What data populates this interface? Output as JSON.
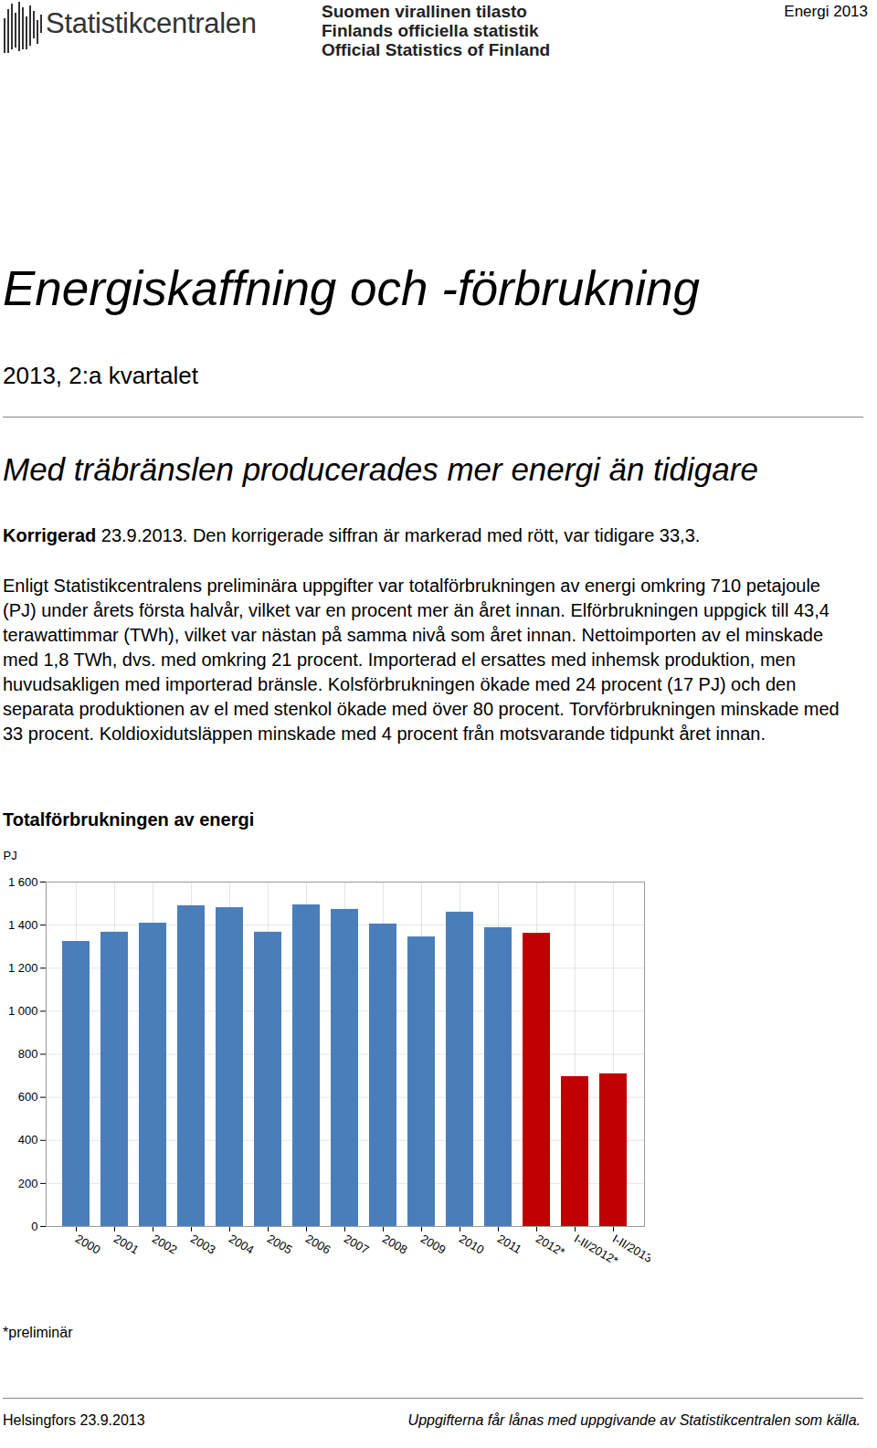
{
  "header": {
    "logo": "Statistikcentralen",
    "series_names": [
      "Suomen virallinen tilasto",
      "Finlands officiella statistik",
      "Official Statistics of Finland"
    ],
    "publication": "Energi 2013"
  },
  "title": "Energiskaffning och -förbrukning",
  "period": "2013, 2:a kvartalet",
  "headline": "Med träbränslen producerades mer energi än tidigare",
  "correction": {
    "label": "Korrigerad",
    "text": "23.9.2013. Den korrigerade siffran är markerad med rött, var tidigare 33,3."
  },
  "body": "Enligt Statistikcentralens preliminära uppgifter var totalförbrukningen av energi omkring 710 petajoule (PJ) under årets första halvår, vilket var en procent mer än året innan. Elförbrukningen uppgick till 43,4 terawattimmar (TWh), vilket var nästan på samma nivå som året innan. Nettoimporten av el minskade med 1,8 TWh, dvs. med omkring 21 procent. Importerad el ersattes med inhemsk produktion, men huvudsakligen med importerad bränsle. Kolsförbrukningen ökade med 24 procent (17 PJ) och den separata produktionen av el med stenkol ökade med över 80 procent. Torvförbrukningen minskade med 33 procent. Koldioxidutsläppen minskade med 4 procent från motsvarande tidpunkt året innan.",
  "chart_data": {
    "type": "bar",
    "title": "Totalförbrukningen av energi",
    "y_label": "PJ",
    "categories": [
      "2000",
      "2001",
      "2002",
      "2003",
      "2004",
      "2005",
      "2006",
      "2007",
      "2008",
      "2009",
      "2010",
      "2011",
      "2012*",
      "I-II/2012*",
      "I-II/2013*"
    ],
    "values": [
      1324,
      1367,
      1409,
      1490,
      1481,
      1367,
      1494,
      1473,
      1405,
      1345,
      1460,
      1388,
      1362,
      696,
      709
    ],
    "colors": [
      "#4a7ebb",
      "#4a7ebb",
      "#4a7ebb",
      "#4a7ebb",
      "#4a7ebb",
      "#4a7ebb",
      "#4a7ebb",
      "#4a7ebb",
      "#4a7ebb",
      "#4a7ebb",
      "#4a7ebb",
      "#4a7ebb",
      "#c00000",
      "#c00000",
      "#c00000"
    ],
    "ylim": [
      0,
      1600
    ],
    "yticks": [
      0,
      200,
      400,
      600,
      800,
      {
        "value": 1000,
        "label": "1 000"
      },
      {
        "value": 1200,
        "label": "1 200"
      },
      {
        "value": 1400,
        "label": "1 400"
      },
      {
        "value": 1600,
        "label": "1 600"
      }
    ],
    "grid": true
  },
  "footnote": "*preliminär",
  "footer": {
    "left": "Helsingfors 23.9.2013",
    "right": "Uppgifterna får lånas med uppgivande av Statistikcentralen som källa."
  }
}
